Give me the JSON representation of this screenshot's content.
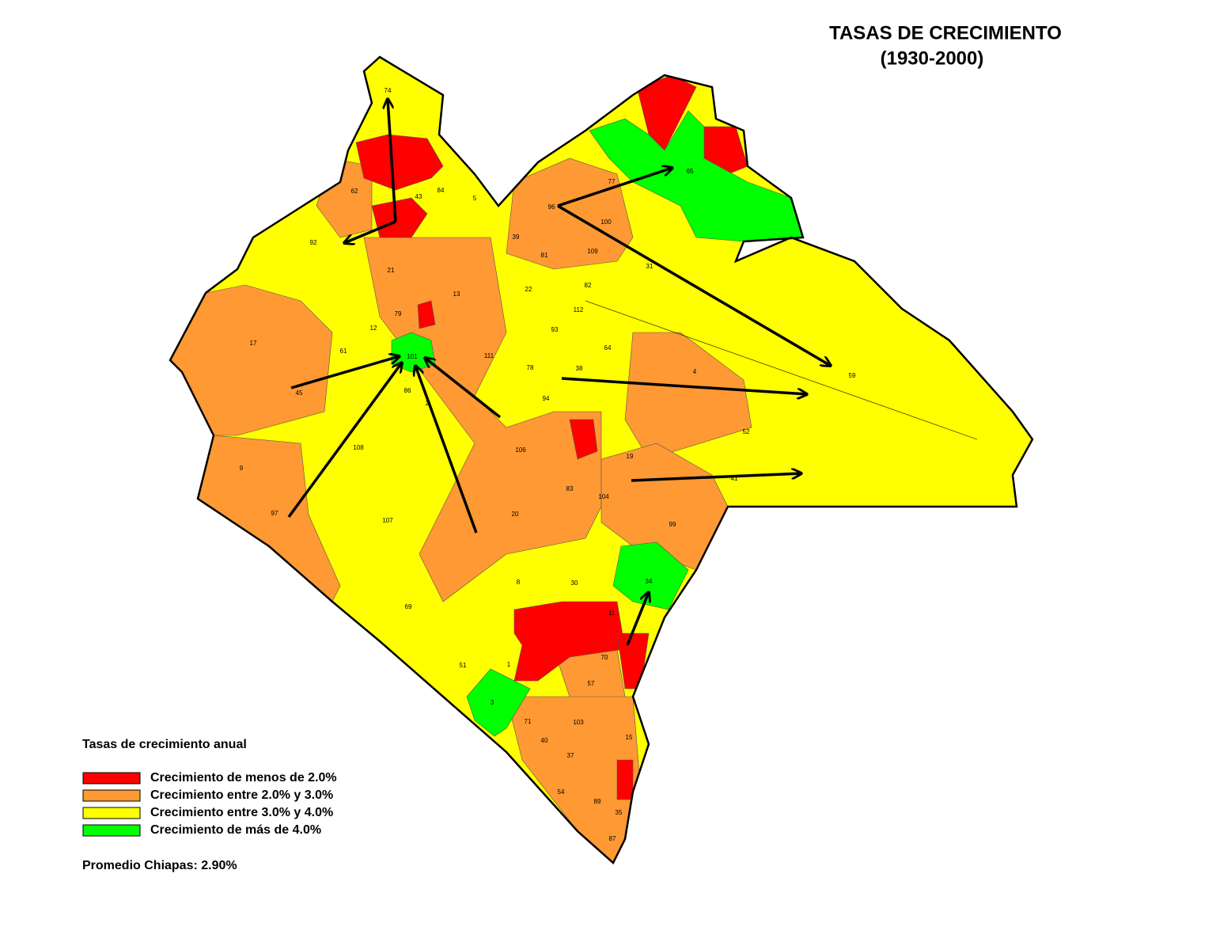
{
  "title": "TASAS DE CRECIMIENTO",
  "subtitle": "(1930-2000)",
  "legend": {
    "title": "Tasas de crecimiento anual",
    "items": [
      {
        "label": "Crecimiento de menos de 2.0%",
        "color": "#ff0000"
      },
      {
        "label": "Crecimiento entre 2.0% y 3.0%",
        "color": "#ff9933"
      },
      {
        "label": "Crecimiento entre 3.0% y 4.0%",
        "color": "#ffff00"
      },
      {
        "label": "Crecimiento de más de 4.0%",
        "color": "#00ff00"
      }
    ]
  },
  "average": "Promedio Chiapas: 2.90%",
  "map": {
    "labels": [
      "74",
      "92",
      "17",
      "45",
      "9",
      "97",
      "108",
      "107",
      "101",
      "61",
      "79",
      "12",
      "86",
      "106",
      "20",
      "8",
      "30",
      "69",
      "51",
      "1",
      "3",
      "71",
      "40",
      "103",
      "37",
      "54",
      "89",
      "87",
      "35",
      "15",
      "57",
      "70",
      "11",
      "34",
      "99",
      "104",
      "83",
      "19",
      "52",
      "41",
      "4",
      "59",
      "31",
      "100",
      "77",
      "96",
      "65",
      "109",
      "81",
      "82",
      "112",
      "93",
      "64",
      "111",
      "78",
      "38",
      "94",
      "22",
      "39",
      "13",
      "21",
      "62",
      "5",
      "84",
      "43",
      "2"
    ]
  }
}
